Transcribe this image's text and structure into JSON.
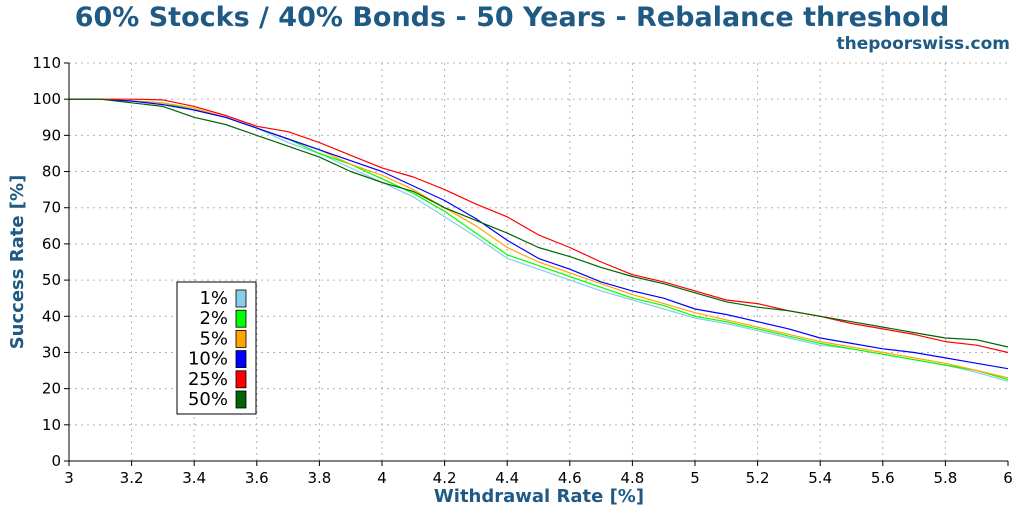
{
  "chart_data": {
    "type": "line",
    "title": "60% Stocks / 40% Bonds - 50 Years - Rebalance threshold",
    "subtitle": "thepoorswiss.com",
    "xlabel": "Withdrawal Rate [%]",
    "ylabel": "Success Rate [%]",
    "xlim": [
      3,
      6
    ],
    "ylim": [
      0,
      110
    ],
    "x_ticks": [
      "3",
      "3.2",
      "3.4",
      "3.6",
      "3.8",
      "4",
      "4.2",
      "4.4",
      "4.6",
      "4.8",
      "5",
      "5.2",
      "5.4",
      "5.6",
      "5.8",
      "6"
    ],
    "y_ticks": [
      "0",
      "10",
      "20",
      "30",
      "40",
      "50",
      "60",
      "70",
      "80",
      "90",
      "100",
      "110"
    ],
    "grid": true,
    "legend_position": "left",
    "x": [
      3.0,
      3.1,
      3.2,
      3.3,
      3.4,
      3.5,
      3.6,
      3.7,
      3.8,
      3.9,
      4.0,
      4.1,
      4.2,
      4.3,
      4.4,
      4.5,
      4.6,
      4.7,
      4.8,
      4.9,
      5.0,
      5.1,
      5.2,
      5.3,
      5.4,
      5.5,
      5.6,
      5.7,
      5.8,
      5.9,
      6.0
    ],
    "series": [
      {
        "name": "1%",
        "color": "#87ceeb",
        "values": [
          100,
          100,
          99.5,
          99,
          97,
          95,
          92,
          88,
          85,
          81,
          77,
          73,
          67.5,
          62,
          56,
          53,
          50,
          47,
          44.5,
          42,
          39.5,
          38,
          36,
          34,
          32,
          31,
          29.5,
          28,
          26.5,
          24.5,
          22
        ]
      },
      {
        "name": "2%",
        "color": "#00ff00",
        "values": [
          100,
          100,
          99.5,
          99,
          97,
          95,
          92,
          89,
          85,
          82,
          78,
          74,
          69,
          63,
          57,
          54,
          51,
          48,
          45,
          43,
          40,
          38.5,
          36.5,
          34.5,
          32.5,
          31,
          29.5,
          28,
          26.5,
          25,
          22.5
        ]
      },
      {
        "name": "5%",
        "color": "#ffa500",
        "values": [
          100,
          100,
          99.5,
          99,
          97.5,
          95,
          92,
          89,
          86,
          82,
          79,
          75,
          70,
          65,
          59,
          55,
          52,
          49,
          46,
          43.5,
          41,
          39,
          37,
          35,
          33,
          31.5,
          30,
          28.5,
          27,
          25,
          23
        ]
      },
      {
        "name": "10%",
        "color": "#0000ff",
        "values": [
          100,
          100,
          99.5,
          98.5,
          97,
          95,
          92,
          89,
          86,
          83,
          80,
          76,
          72,
          67,
          61,
          56,
          53,
          49.5,
          47,
          45,
          42,
          40.5,
          38.5,
          36.5,
          34,
          32.5,
          31,
          30,
          28.5,
          27,
          25.5
        ]
      },
      {
        "name": "25%",
        "color": "#ff0000",
        "values": [
          100,
          100,
          100,
          99.8,
          98,
          95.5,
          92.5,
          91,
          88,
          84.5,
          81,
          78.5,
          75,
          71,
          67.5,
          62.5,
          59,
          55,
          51.5,
          49.5,
          47,
          44.5,
          43.5,
          41.5,
          40,
          38,
          36.5,
          35,
          33,
          32,
          30
        ]
      },
      {
        "name": "50%",
        "color": "#006400",
        "values": [
          100,
          100,
          99,
          98,
          95,
          93,
          90,
          87,
          84,
          80,
          77,
          74.5,
          70,
          66.5,
          63,
          59,
          56.5,
          53.5,
          51,
          49,
          46.5,
          44,
          42.5,
          41.5,
          40,
          38.5,
          37,
          35.5,
          34,
          33.5,
          31.5
        ]
      }
    ]
  }
}
